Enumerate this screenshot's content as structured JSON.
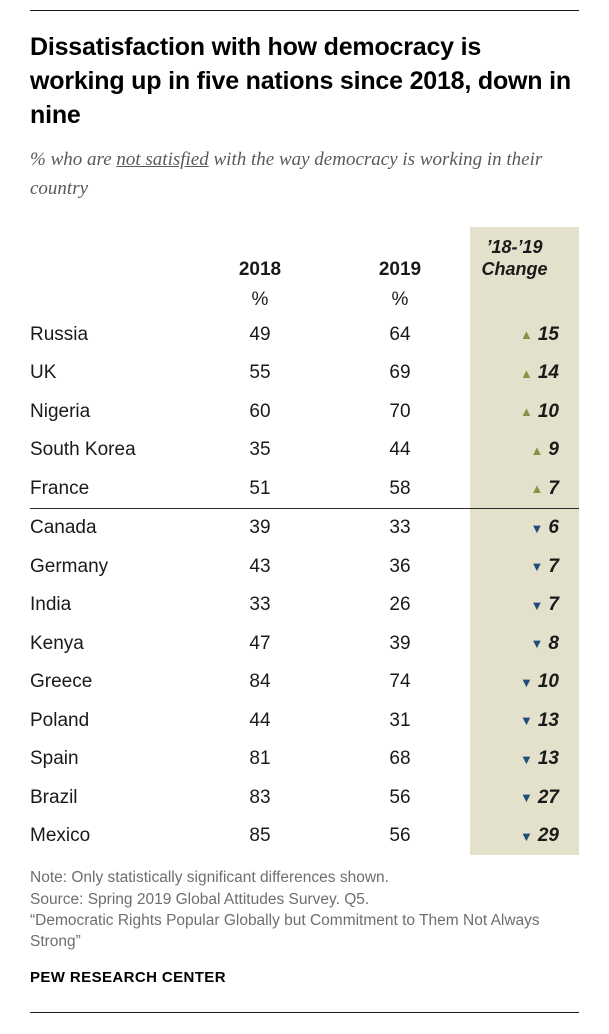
{
  "title": "Dissatisfaction with how democracy is working up in five nations since 2018, down in nine",
  "subtitle": {
    "prefix": "% who are ",
    "underline": "not satisfied",
    "suffix": " with the way democracy is working in their country"
  },
  "table": {
    "headers": {
      "y2018": "2018",
      "y2019": "2019",
      "change_line1": "’18-’19",
      "change_line2": "Change"
    },
    "percent": "%",
    "rows": [
      {
        "country": "Russia",
        "y2018": "49",
        "y2019": "64",
        "arrow": "▲",
        "direction": "up",
        "change": "15"
      },
      {
        "country": "UK",
        "y2018": "55",
        "y2019": "69",
        "arrow": "▲",
        "direction": "up",
        "change": "14"
      },
      {
        "country": "Nigeria",
        "y2018": "60",
        "y2019": "70",
        "arrow": "▲",
        "direction": "up",
        "change": "10"
      },
      {
        "country": "South Korea",
        "y2018": "35",
        "y2019": "44",
        "arrow": "▲",
        "direction": "up",
        "change": "9"
      },
      {
        "country": "France",
        "y2018": "51",
        "y2019": "58",
        "arrow": "▲",
        "direction": "up",
        "change": "7"
      },
      {
        "country": "Canada",
        "y2018": "39",
        "y2019": "33",
        "arrow": "▼",
        "direction": "down",
        "change": "6"
      },
      {
        "country": "Germany",
        "y2018": "43",
        "y2019": "36",
        "arrow": "▼",
        "direction": "down",
        "change": "7"
      },
      {
        "country": "India",
        "y2018": "33",
        "y2019": "26",
        "arrow": "▼",
        "direction": "down",
        "change": "7"
      },
      {
        "country": "Kenya",
        "y2018": "47",
        "y2019": "39",
        "arrow": "▼",
        "direction": "down",
        "change": "8"
      },
      {
        "country": "Greece",
        "y2018": "84",
        "y2019": "74",
        "arrow": "▼",
        "direction": "down",
        "change": "10"
      },
      {
        "country": "Poland",
        "y2018": "44",
        "y2019": "31",
        "arrow": "▼",
        "direction": "down",
        "change": "13"
      },
      {
        "country": "Spain",
        "y2018": "81",
        "y2019": "68",
        "arrow": "▼",
        "direction": "down",
        "change": "13"
      },
      {
        "country": "Brazil",
        "y2018": "83",
        "y2019": "56",
        "arrow": "▼",
        "direction": "down",
        "change": "27"
      },
      {
        "country": "Mexico",
        "y2018": "85",
        "y2019": "56",
        "arrow": "▼",
        "direction": "down",
        "change": "29"
      }
    ]
  },
  "notes": {
    "note": "Note: Only statistically significant differences shown.",
    "source": "Source: Spring 2019 Global Attitudes Survey. Q5.",
    "report": "“Democratic Rights Popular Globally but Commitment to Them Not Always Strong”"
  },
  "brand": "PEW RESEARCH CENTER",
  "colors": {
    "up": "#8a9246",
    "down": "#1e4d78",
    "change_bg": "#e3e0cc"
  },
  "chart_data": {
    "type": "table",
    "title": "Dissatisfaction with how democracy is working up in five nations since 2018, down in nine",
    "subtitle": "% who are not satisfied with the way democracy is working in their country",
    "categories": [
      "Russia",
      "UK",
      "Nigeria",
      "South Korea",
      "France",
      "Canada",
      "Germany",
      "India",
      "Kenya",
      "Greece",
      "Poland",
      "Spain",
      "Brazil",
      "Mexico"
    ],
    "series": [
      {
        "name": "2018",
        "values": [
          49,
          55,
          60,
          35,
          51,
          39,
          43,
          33,
          47,
          84,
          44,
          81,
          83,
          85
        ]
      },
      {
        "name": "2019",
        "values": [
          64,
          69,
          70,
          44,
          58,
          33,
          36,
          26,
          39,
          74,
          31,
          68,
          56,
          56
        ]
      },
      {
        "name": "’18-’19 Change",
        "values": [
          15,
          14,
          10,
          9,
          7,
          -6,
          -7,
          -7,
          -8,
          -10,
          -13,
          -13,
          -27,
          -29
        ]
      }
    ],
    "layout": {
      "divider_after_row": "France",
      "unit": "%"
    }
  }
}
